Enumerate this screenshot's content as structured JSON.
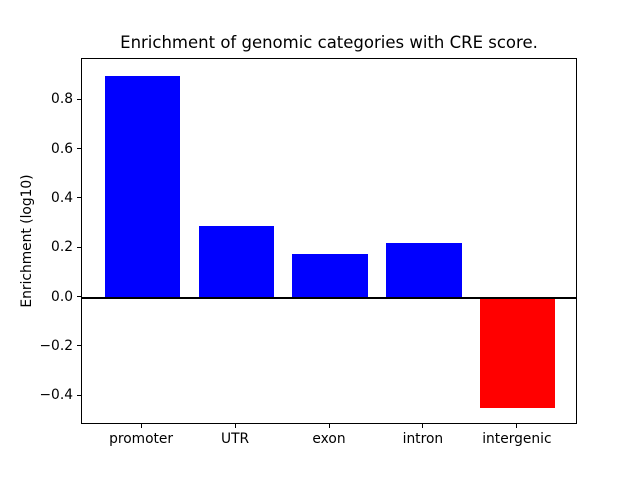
{
  "chart_data": {
    "type": "bar",
    "title": "Enrichment of genomic categories with CRE score.",
    "xlabel": "",
    "ylabel": "Enrichment (log10)",
    "categories": [
      "promoter",
      "UTR",
      "exon",
      "intron",
      "intergenic"
    ],
    "values": [
      0.9,
      0.29,
      0.175,
      0.22,
      -0.45
    ],
    "bar_colors": [
      "#0000ff",
      "#0000ff",
      "#0000ff",
      "#0000ff",
      "#ff0000"
    ],
    "positive_color": "#0000ff",
    "negative_color": "#ff0000",
    "yticks": [
      -0.4,
      -0.2,
      0.0,
      0.2,
      0.4,
      0.6,
      0.8
    ],
    "ytick_labels": [
      "−0.4",
      "−0.2",
      "0.0",
      "0.2",
      "0.4",
      "0.6",
      "0.8"
    ],
    "ylim": [
      -0.5175,
      0.9675
    ],
    "xlim": [
      -0.64,
      4.64
    ],
    "bar_width_fraction": 0.8,
    "grid": false,
    "legend": null,
    "zero_line": true,
    "axis_color": "#000000",
    "background_color": "#ffffff"
  }
}
